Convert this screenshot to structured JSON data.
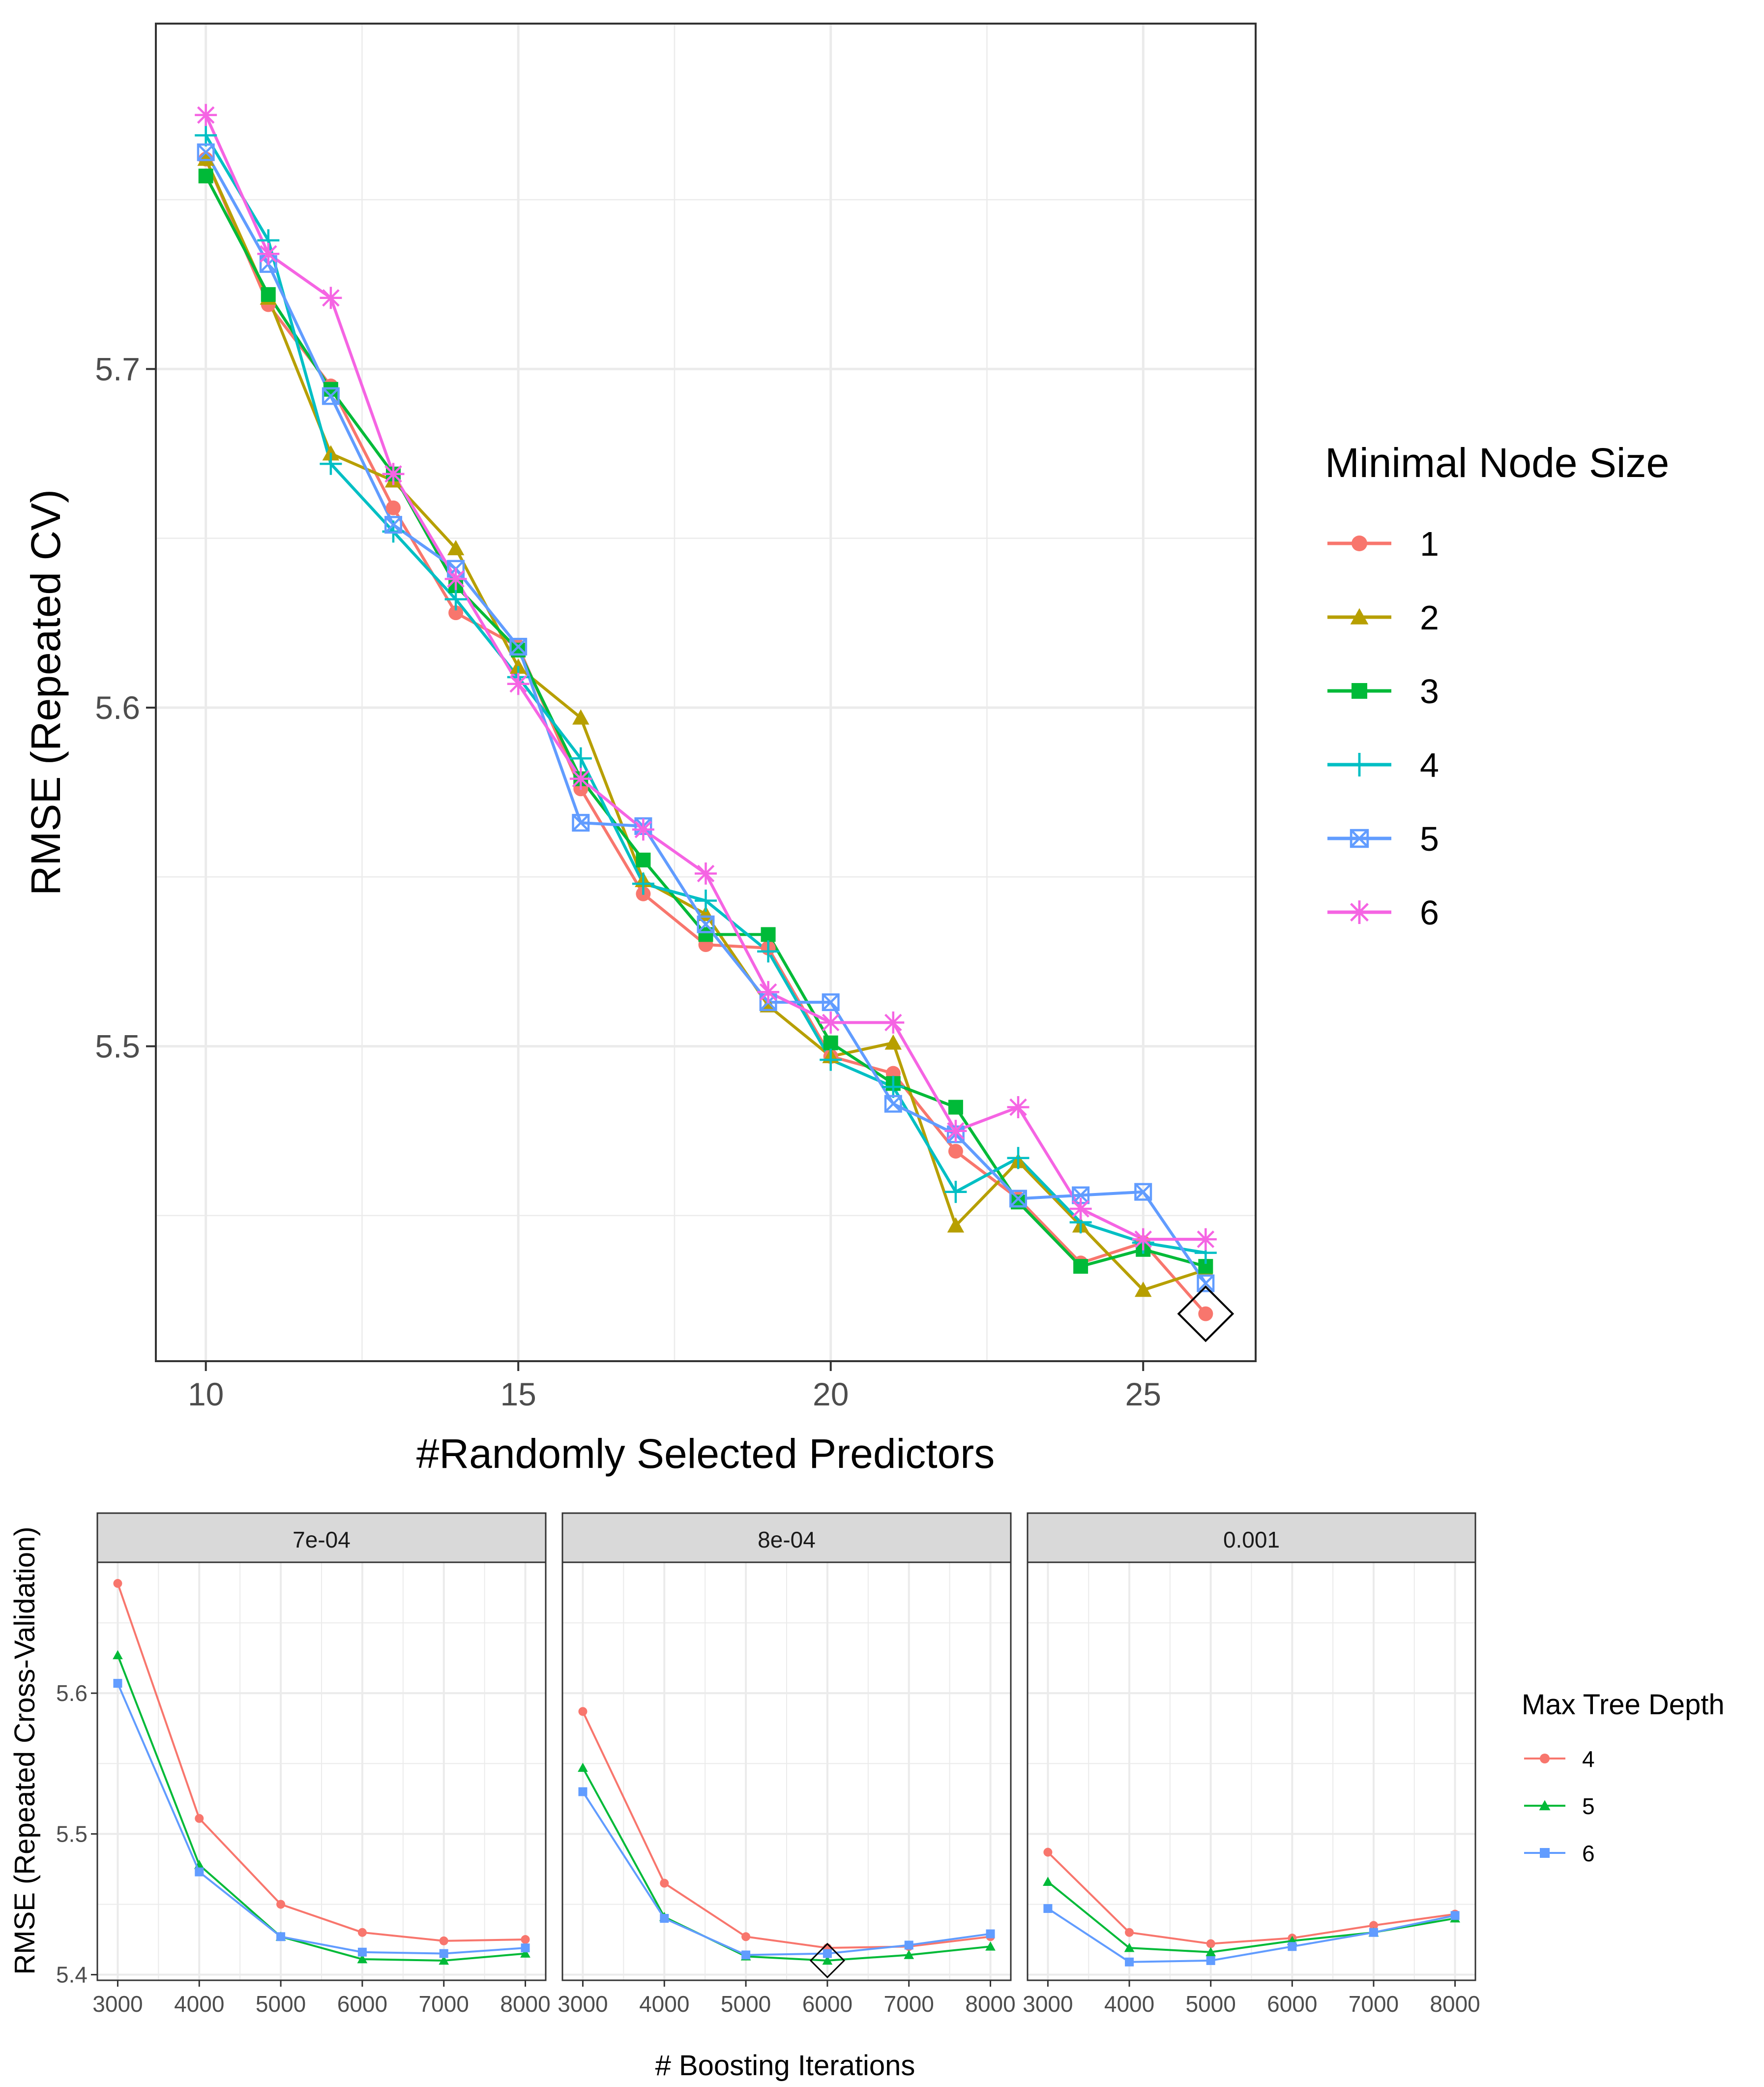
{
  "colors": {
    "s1": "#F8766D",
    "s2": "#B79F00",
    "s3": "#00BA38",
    "s4": "#00BFC4",
    "s5": "#619CFF",
    "s6": "#F564E3",
    "d4": "#F8766D",
    "d5": "#00BA38",
    "d6": "#619CFF",
    "grid": "#EBEBEB",
    "axis_text": "#4D4D4D",
    "strip_bg": "#D9D9D9"
  },
  "chart_data": [
    {
      "type": "line",
      "title": "",
      "xlabel": "#Randomly Selected Predictors",
      "ylabel": "RMSE (Repeated CV)",
      "xlim": [
        9.2,
        26.8
      ],
      "ylim": [
        5.407,
        5.802
      ],
      "x_ticks": [
        10,
        15,
        20,
        25
      ],
      "x_tick_labels": [
        "10",
        "15",
        "20",
        "25"
      ],
      "y_ticks": [
        5.5,
        5.6,
        5.7
      ],
      "y_tick_labels": [
        "5.5",
        "5.6",
        "5.7"
      ],
      "grid": true,
      "legend": {
        "title": "Minimal Node Size",
        "position": "right"
      },
      "x": [
        10,
        11,
        12,
        13,
        14,
        15,
        16,
        17,
        18,
        19,
        20,
        21,
        22,
        23,
        24,
        25,
        26
      ],
      "series": [
        {
          "name": "1",
          "marker": "circle",
          "color_key": "s1",
          "values": [
            5.762,
            5.719,
            5.695,
            5.659,
            5.628,
            5.618,
            5.576,
            5.545,
            5.53,
            5.529,
            5.497,
            5.492,
            5.469,
            5.455,
            5.436,
            5.442,
            5.421
          ]
        },
        {
          "name": "2",
          "marker": "triangle",
          "color_key": "s2",
          "values": [
            5.762,
            5.721,
            5.675,
            5.667,
            5.647,
            5.612,
            5.597,
            5.549,
            5.539,
            5.512,
            5.497,
            5.501,
            5.447,
            5.466,
            5.447,
            5.428,
            5.434
          ]
        },
        {
          "name": "3",
          "marker": "square",
          "color_key": "s3",
          "values": [
            5.757,
            5.722,
            5.694,
            5.669,
            5.636,
            5.617,
            5.579,
            5.555,
            5.533,
            5.533,
            5.501,
            5.489,
            5.482,
            5.454,
            5.435,
            5.44,
            5.435
          ]
        },
        {
          "name": "4",
          "marker": "plus",
          "color_key": "s4",
          "values": [
            5.769,
            5.738,
            5.672,
            5.652,
            5.632,
            5.609,
            5.585,
            5.548,
            5.543,
            5.528,
            5.496,
            5.488,
            5.457,
            5.467,
            5.448,
            5.442,
            5.439
          ]
        },
        {
          "name": "5",
          "marker": "square-x",
          "color_key": "s5",
          "values": [
            5.764,
            5.731,
            5.692,
            5.654,
            5.641,
            5.618,
            5.566,
            5.565,
            5.536,
            5.513,
            5.513,
            5.483,
            5.474,
            5.455,
            5.456,
            5.457,
            5.43
          ]
        },
        {
          "name": "6",
          "marker": "star",
          "color_key": "s6",
          "values": [
            5.775,
            5.734,
            5.721,
            5.669,
            5.638,
            5.607,
            5.579,
            5.564,
            5.551,
            5.516,
            5.507,
            5.507,
            5.475,
            5.482,
            5.452,
            5.443,
            5.443
          ]
        }
      ],
      "best": {
        "x": 26,
        "y": 5.421
      }
    },
    {
      "type": "line",
      "title": "",
      "xlabel": "# Boosting Iterations",
      "ylabel": "RMSE (Repeated Cross-Validation)",
      "xlim": [
        2750,
        8250
      ],
      "ylim": [
        5.396,
        5.693
      ],
      "x_ticks": [
        3000,
        4000,
        5000,
        6000,
        7000,
        8000
      ],
      "x_tick_labels": [
        "3000",
        "4000",
        "5000",
        "6000",
        "7000",
        "8000"
      ],
      "y_ticks": [
        5.4,
        5.5,
        5.6
      ],
      "y_tick_labels": [
        "5.4",
        "5.5",
        "5.6"
      ],
      "grid": true,
      "legend": {
        "title": "Max Tree Depth",
        "position": "right"
      },
      "x": [
        3000,
        4000,
        5000,
        6000,
        7000,
        8000
      ],
      "series_names": [
        "4",
        "5",
        "6"
      ],
      "series_markers": [
        "circle",
        "triangle",
        "square"
      ],
      "series_color_keys": [
        "d4",
        "d5",
        "d6"
      ],
      "facets": [
        {
          "label": "7e-04",
          "series": [
            [
              5.678,
              5.511,
              5.45,
              5.43,
              5.424,
              5.425
            ],
            [
              5.627,
              5.478,
              5.427,
              5.411,
              5.41,
              5.415
            ],
            [
              5.607,
              5.473,
              5.427,
              5.416,
              5.415,
              5.419
            ]
          ]
        },
        {
          "label": "8e-04",
          "series": [
            [
              5.587,
              5.465,
              5.427,
              5.419,
              5.42,
              5.427
            ],
            [
              5.547,
              5.441,
              5.413,
              5.41,
              5.414,
              5.42
            ],
            [
              5.53,
              5.44,
              5.414,
              5.415,
              5.421,
              5.429
            ]
          ],
          "best": {
            "x": 6000,
            "y": 5.41
          }
        },
        {
          "label": "0.001",
          "series": [
            [
              5.487,
              5.43,
              5.422,
              5.426,
              5.435,
              5.443
            ],
            [
              5.466,
              5.419,
              5.416,
              5.424,
              5.43,
              5.44
            ],
            [
              5.447,
              5.409,
              5.41,
              5.42,
              5.43,
              5.442
            ]
          ]
        }
      ]
    }
  ]
}
